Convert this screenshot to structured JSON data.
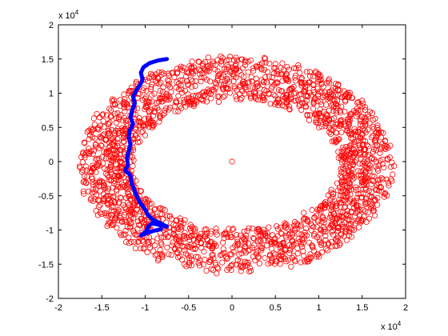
{
  "chart_data": {
    "type": "scatter",
    "title": "",
    "xlabel": "",
    "ylabel": "",
    "xlim": [
      -20000,
      20000
    ],
    "ylim": [
      -20000,
      20000
    ],
    "x_ticks": [
      -20000,
      -15000,
      -10000,
      -5000,
      0,
      5000,
      10000,
      15000,
      20000
    ],
    "y_ticks": [
      -20000,
      -15000,
      -10000,
      -5000,
      0,
      5000,
      10000,
      15000,
      20000
    ],
    "x_tick_labels": [
      "-2",
      "-1.5",
      "-1",
      "-0.5",
      "0",
      "0.5",
      "1",
      "1.5",
      "2"
    ],
    "y_tick_labels": [
      "-2",
      "-1.5",
      "-1",
      "-0.5",
      "0",
      "0.5",
      "1",
      "1.5",
      "2"
    ],
    "x_multiplier": {
      "base": "x 10",
      "exponent": "4"
    },
    "y_multiplier": {
      "base": "x 10",
      "exponent": "4"
    },
    "grid": false,
    "legend": "none",
    "series": [
      {
        "kind": "scatter",
        "marker": "open-circle",
        "color": "#ff0000",
        "ring": {
          "center": [
            500,
            -500
          ],
          "inner_radii": [
            12000,
            9500
          ],
          "outer_radii": [
            18000,
            15800
          ],
          "approx_point_count": 2200
        },
        "points": [
          [
            0,
            0
          ]
        ]
      },
      {
        "kind": "line",
        "color": "#0000ff",
        "points": [
          [
            -7500,
            15000
          ],
          [
            -8500,
            14800
          ],
          [
            -9500,
            14400
          ],
          [
            -10200,
            13800
          ],
          [
            -10500,
            13000
          ],
          [
            -10300,
            12000
          ],
          [
            -10600,
            11200
          ],
          [
            -11000,
            10500
          ],
          [
            -11400,
            9500
          ],
          [
            -11200,
            8500
          ],
          [
            -11500,
            7500
          ],
          [
            -11700,
            6500
          ],
          [
            -11400,
            5500
          ],
          [
            -11800,
            4500
          ],
          [
            -11900,
            3500
          ],
          [
            -11700,
            2500
          ],
          [
            -11900,
            1500
          ],
          [
            -12100,
            500
          ],
          [
            -12000,
            -500
          ],
          [
            -12300,
            -1300
          ],
          [
            -11700,
            -2000
          ],
          [
            -11600,
            -3000
          ],
          [
            -11300,
            -4000
          ],
          [
            -11000,
            -5000
          ],
          [
            -10600,
            -6000
          ],
          [
            -10000,
            -7000
          ],
          [
            -9700,
            -7800
          ],
          [
            -9100,
            -8500
          ],
          [
            -8300,
            -9000
          ],
          [
            -7500,
            -9500
          ],
          [
            -8300,
            -9300
          ],
          [
            -9200,
            -9000
          ],
          [
            -9600,
            -9400
          ],
          [
            -9900,
            -10200
          ],
          [
            -10500,
            -10800
          ],
          [
            -9700,
            -10400
          ],
          [
            -9000,
            -10100
          ],
          [
            -8200,
            -9900
          ]
        ]
      }
    ]
  }
}
